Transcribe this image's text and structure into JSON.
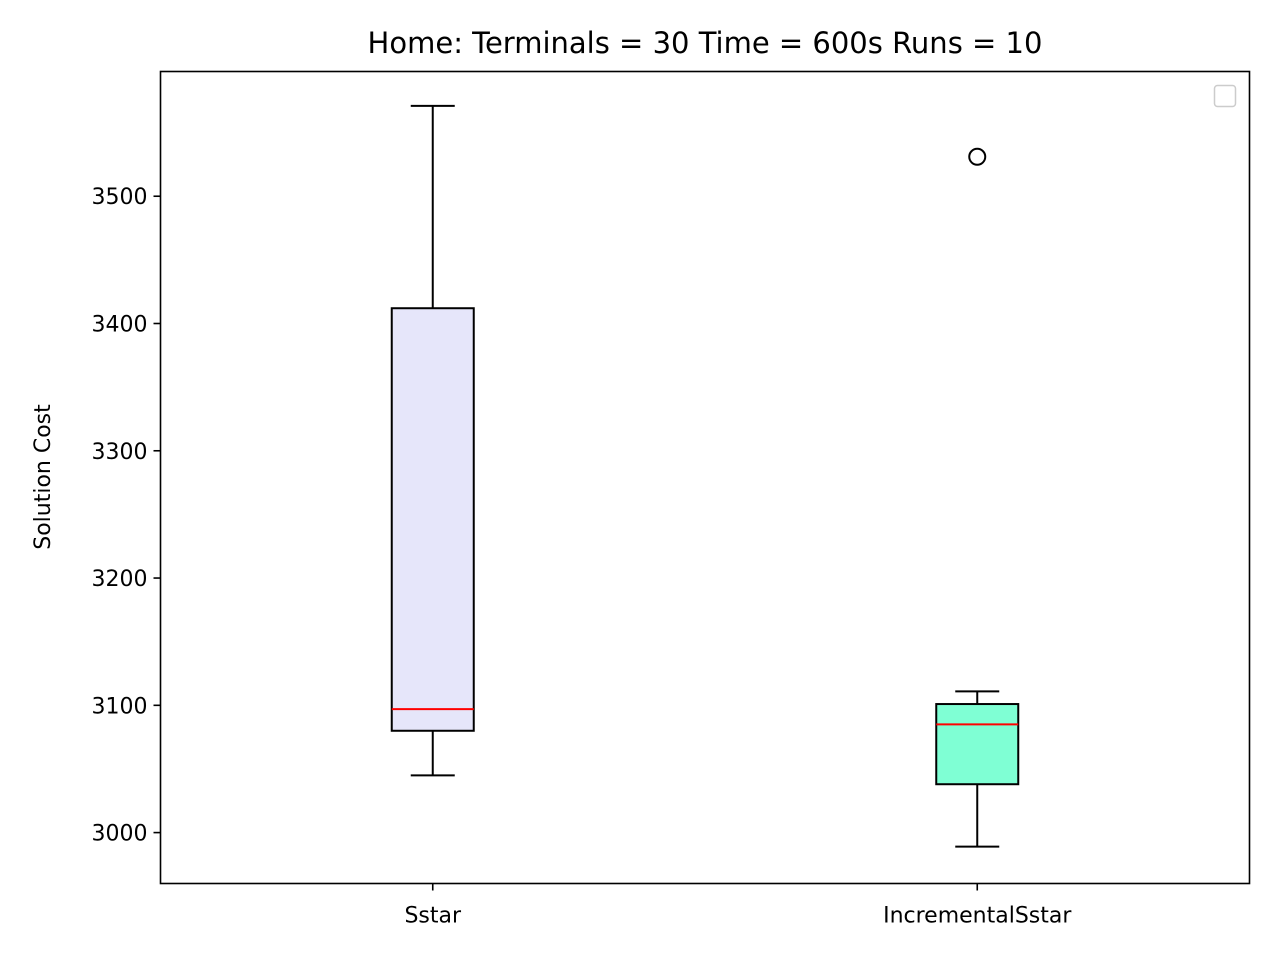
{
  "chart_data": {
    "type": "box",
    "title": "Home:  Terminals = 30  Time = 600s  Runs = 10",
    "xlabel": "",
    "ylabel": "Solution Cost",
    "categories": [
      "Sstar",
      "IncrementalSstar"
    ],
    "yticks": [
      3000,
      3100,
      3200,
      3300,
      3400,
      3500
    ],
    "ylim": [
      2960,
      3598
    ],
    "grid": false,
    "legend": "top-right (empty)",
    "boxes": [
      {
        "category": "Sstar",
        "whisker_low": 3045,
        "q1": 3080,
        "median": 3097,
        "q3": 3412,
        "whisker_high": 3571,
        "outliers": [],
        "fill_color": "#e6e6fa",
        "median_color": "#ff0000"
      },
      {
        "category": "IncrementalSstar",
        "whisker_low": 2989,
        "q1": 3038,
        "median": 3085,
        "q3": 3101,
        "whisker_high": 3111,
        "outliers": [
          3531
        ],
        "fill_color": "#7fffd4",
        "median_color": "#ff0000"
      }
    ]
  }
}
